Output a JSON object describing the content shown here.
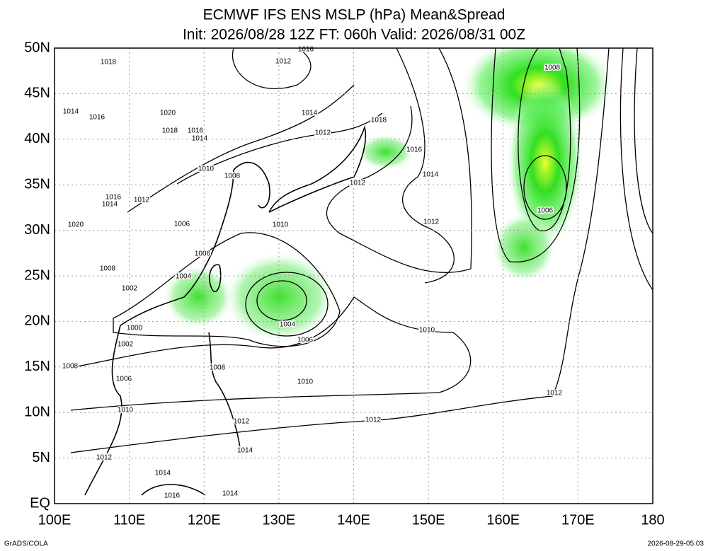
{
  "title": "ECMWF IFS ENS MSLP (hPa) Mean&Spread",
  "subtitle": "Init: 2026/08/28 12Z  FT: 060h  Valid: 2026/08/31 00Z",
  "map": {
    "x_ticks": [
      "100E",
      "110E",
      "120E",
      "130E",
      "140E",
      "150E",
      "160E",
      "170E",
      "180"
    ],
    "y_ticks": [
      "EQ",
      "5N",
      "10N",
      "15N",
      "20N",
      "25N",
      "30N",
      "35N",
      "40N",
      "45N",
      "50N"
    ],
    "contour_labels": [
      "1018",
      "1012",
      "1016",
      "1014",
      "1016",
      "1020",
      "1018",
      "1016",
      "1014",
      "1014",
      "1012",
      "1018",
      "1016",
      "1014",
      "1008",
      "1006",
      "1010",
      "1008",
      "1012",
      "1016",
      "1014",
      "1012",
      "1006",
      "1010",
      "1012",
      "1020",
      "1006",
      "1004",
      "1008",
      "1002",
      "1000",
      "1002",
      "1004",
      "1006",
      "1010",
      "1008",
      "1008",
      "1006",
      "1010",
      "1010",
      "1012",
      "1012",
      "1012",
      "1012",
      "1014",
      "1014",
      "1016",
      "1014"
    ]
  },
  "footer": {
    "left": "GrADS/COLA",
    "right": "2026-08-29-05:03"
  }
}
